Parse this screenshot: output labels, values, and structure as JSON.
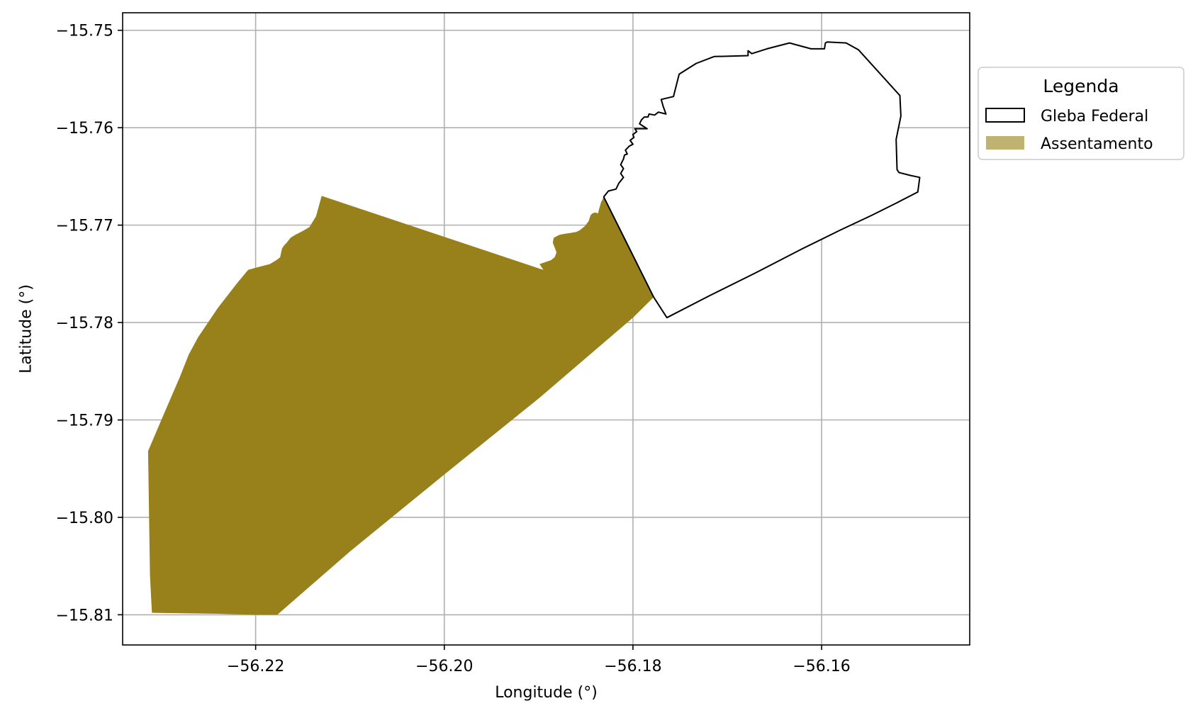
{
  "chart_data": {
    "type": "map",
    "xlabel": "Longitude (°)",
    "ylabel": "Latitude (°)",
    "xlim": [
      -56.2341,
      -56.1443
    ],
    "ylim": [
      -15.8131,
      -15.7482
    ],
    "xticks": [
      -56.22,
      -56.2,
      -56.18,
      -56.16
    ],
    "xtick_labels": [
      "−56.22",
      "−56.20",
      "−56.18",
      "−56.16"
    ],
    "yticks": [
      -15.75,
      -15.76,
      -15.77,
      -15.78,
      -15.79,
      -15.8,
      -15.81
    ],
    "ytick_labels": [
      "−15.75",
      "−15.76",
      "−15.77",
      "−15.78",
      "−15.79",
      "−15.80",
      "−15.81"
    ],
    "grid": true,
    "legend": {
      "title": "Legenda",
      "placement": "outside upper right",
      "entries": [
        {
          "label": "Gleba Federal",
          "style": "outline",
          "edge": "#000000",
          "fill": "#ffffff"
        },
        {
          "label": "Assentamento",
          "style": "filled",
          "fill": "#c0b270"
        }
      ]
    },
    "layers": [
      {
        "name": "Assentamento",
        "fill": "#98811a",
        "coords": [
          [
            -56.213,
            -15.767
          ],
          [
            -56.1895,
            -15.7746
          ],
          [
            -56.1899,
            -15.774
          ],
          [
            -56.1893,
            -15.7738
          ],
          [
            -56.1887,
            -15.7736
          ],
          [
            -56.1883,
            -15.7733
          ],
          [
            -56.1881,
            -15.7728
          ],
          [
            -56.1883,
            -15.7723
          ],
          [
            -56.1885,
            -15.7718
          ],
          [
            -56.1884,
            -15.7713
          ],
          [
            -56.1878,
            -15.771
          ],
          [
            -56.1873,
            -15.7709
          ],
          [
            -56.1866,
            -15.7708
          ],
          [
            -56.186,
            -15.7707
          ],
          [
            -56.1856,
            -15.7705
          ],
          [
            -56.1851,
            -15.7701
          ],
          [
            -56.1847,
            -15.7696
          ],
          [
            -56.1845,
            -15.769
          ],
          [
            -56.1843,
            -15.7688
          ],
          [
            -56.184,
            -15.7687
          ],
          [
            -56.1837,
            -15.7688
          ],
          [
            -56.1836,
            -15.7684
          ],
          [
            -56.1834,
            -15.7677
          ],
          [
            -56.1831,
            -15.7671
          ],
          [
            -56.1778,
            -15.7774
          ],
          [
            -56.18,
            -15.7795
          ],
          [
            -56.19,
            -15.7878
          ],
          [
            -56.2,
            -15.7956
          ],
          [
            -56.21,
            -15.8035
          ],
          [
            -56.2177,
            -15.81
          ],
          [
            -56.22,
            -15.81
          ],
          [
            -56.224,
            -15.8099
          ],
          [
            -56.231,
            -15.8098
          ],
          [
            -56.2312,
            -15.806
          ],
          [
            -56.2313,
            -15.8
          ],
          [
            -56.2314,
            -15.7932
          ],
          [
            -56.23,
            -15.79
          ],
          [
            -56.228,
            -15.7855
          ],
          [
            -56.2271,
            -15.7833
          ],
          [
            -56.2261,
            -15.7815
          ],
          [
            -56.224,
            -15.7785
          ],
          [
            -56.222,
            -15.776
          ],
          [
            -56.2208,
            -15.7746
          ],
          [
            -56.2197,
            -15.7743
          ],
          [
            -56.2185,
            -15.774
          ],
          [
            -56.2178,
            -15.7736
          ],
          [
            -56.2174,
            -15.7733
          ],
          [
            -56.2173,
            -15.7728
          ],
          [
            -56.2172,
            -15.7724
          ],
          [
            -56.217,
            -15.7721
          ],
          [
            -56.2167,
            -15.7718
          ],
          [
            -56.2163,
            -15.7713
          ],
          [
            -56.2158,
            -15.771
          ],
          [
            -56.215,
            -15.7706
          ],
          [
            -56.2143,
            -15.7702
          ],
          [
            -56.2136,
            -15.7691
          ]
        ]
      },
      {
        "name": "Gleba Federal",
        "fill": "#ffffff",
        "edge": "#000000",
        "coords": [
          [
            -56.1831,
            -15.7671
          ],
          [
            -56.1826,
            -15.7665
          ],
          [
            -56.1818,
            -15.7663
          ],
          [
            -56.1815,
            -15.7657
          ],
          [
            -56.181,
            -15.7651
          ],
          [
            -56.1813,
            -15.7647
          ],
          [
            -56.181,
            -15.7642
          ],
          [
            -56.1813,
            -15.7638
          ],
          [
            -56.181,
            -15.7632
          ],
          [
            -56.1809,
            -15.7628
          ],
          [
            -56.1806,
            -15.7627
          ],
          [
            -56.1808,
            -15.7623
          ],
          [
            -56.1804,
            -15.7619
          ],
          [
            -56.18,
            -15.7617
          ],
          [
            -56.1803,
            -15.7613
          ],
          [
            -56.1799,
            -15.761
          ],
          [
            -56.18,
            -15.7607
          ],
          [
            -56.1796,
            -15.7604
          ],
          [
            -56.1798,
            -15.7601
          ],
          [
            -56.1793,
            -15.7601
          ],
          [
            -56.1785,
            -15.7601
          ],
          [
            -56.1793,
            -15.7596
          ],
          [
            -56.1791,
            -15.7592
          ],
          [
            -56.1788,
            -15.7589
          ],
          [
            -56.1784,
            -15.7589
          ],
          [
            -56.1783,
            -15.7586
          ],
          [
            -56.1777,
            -15.7587
          ],
          [
            -56.1773,
            -15.7584
          ],
          [
            -56.1765,
            -15.7586
          ],
          [
            -56.1768,
            -15.7578
          ],
          [
            -56.177,
            -15.7571
          ],
          [
            -56.1757,
            -15.7568
          ],
          [
            -56.1751,
            -15.7545
          ],
          [
            -56.1733,
            -15.7534
          ],
          [
            -56.1714,
            -15.7527
          ],
          [
            -56.1678,
            -15.7526
          ],
          [
            -56.1678,
            -15.7521
          ],
          [
            -56.1674,
            -15.7524
          ],
          [
            -56.1658,
            -15.7519
          ],
          [
            -56.1634,
            -15.7513
          ],
          [
            -56.1611,
            -15.7519
          ],
          [
            -56.1597,
            -15.7519
          ],
          [
            -56.1596,
            -15.7513
          ],
          [
            -56.1594,
            -15.7512
          ],
          [
            -56.1574,
            -15.7513
          ],
          [
            -56.1561,
            -15.752
          ],
          [
            -56.1517,
            -15.7567
          ],
          [
            -56.1516,
            -15.7588
          ],
          [
            -56.1521,
            -15.7612
          ],
          [
            -56.152,
            -15.7643
          ],
          [
            -56.1518,
            -15.7646
          ],
          [
            -56.1506,
            -15.7649
          ],
          [
            -56.1496,
            -15.7651
          ],
          [
            -56.1498,
            -15.7666
          ],
          [
            -56.152,
            -15.7677
          ],
          [
            -56.1547,
            -15.769
          ],
          [
            -56.158,
            -15.7705
          ],
          [
            -56.162,
            -15.7724
          ],
          [
            -56.167,
            -15.7749
          ],
          [
            -56.172,
            -15.7773
          ],
          [
            -56.1764,
            -15.7795
          ],
          [
            -56.1778,
            -15.7774
          ]
        ]
      }
    ]
  }
}
